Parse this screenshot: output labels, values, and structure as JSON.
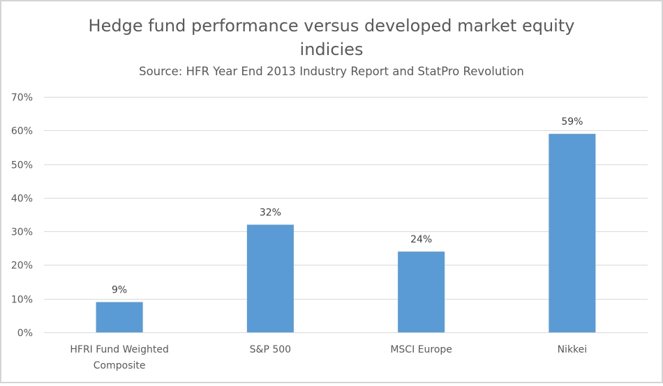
{
  "chart_data": {
    "type": "bar",
    "title": "Hedge fund performance versus developed market equity indicies",
    "title_lines": [
      "Hedge fund performance versus developed market equity",
      "indicies"
    ],
    "subtitle": "Source: HFR Year End 2013 Industry Report and StatPro Revolution",
    "categories": [
      "HFRI Fund Weighted Composite",
      "S&P 500",
      "MSCI Europe",
      "Nikkei"
    ],
    "category_lines": [
      [
        "HFRI Fund Weighted",
        "Composite"
      ],
      [
        "S&P 500"
      ],
      [
        "MSCI Europe"
      ],
      [
        "Nikkei"
      ]
    ],
    "values": [
      9,
      32,
      24,
      59
    ],
    "data_labels": [
      "9%",
      "32%",
      "24%",
      "59%"
    ],
    "xlabel": "",
    "ylabel": "",
    "ylim": [
      0,
      70
    ],
    "yticks": [
      0,
      10,
      20,
      30,
      40,
      50,
      60,
      70
    ],
    "ytick_labels": [
      "0%",
      "10%",
      "20%",
      "30%",
      "40%",
      "50%",
      "60%",
      "70%"
    ],
    "grid": true,
    "legend": "none",
    "colors": {
      "bar": "#5b9bd5",
      "grid": "#d9d9d9",
      "text": "#595959"
    }
  }
}
